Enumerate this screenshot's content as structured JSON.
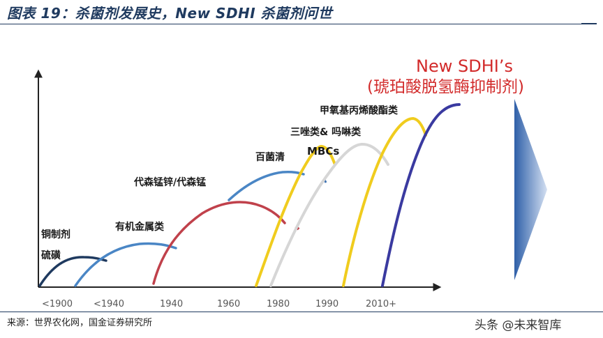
{
  "header": {
    "title": "图表 19：杀菌剂发展史，New SDHI 杀菌剂问世"
  },
  "diagram": {
    "x_ticks": [
      "<1900",
      "<1940",
      "1940",
      "1960",
      "1980",
      "1990",
      "2010+"
    ],
    "stages": [
      {
        "label": "铜制剂",
        "color": "#1f3a5f"
      },
      {
        "label": "硫磺",
        "color": "#1f3a5f"
      },
      {
        "label": "有机金属类",
        "color": "#4a86c5"
      },
      {
        "label": "代森锰锌/代森锰",
        "color": "#4a86c5"
      },
      {
        "label": "百菌清",
        "color": "#c0414b"
      },
      {
        "label": "MBCs",
        "color": "#f0cc1e"
      },
      {
        "label": "三唑类& 吗啉类",
        "color": "#c0c0c0"
      },
      {
        "label": "甲氧基丙烯酸酯类",
        "color": "#f0cc1e"
      }
    ],
    "highlight": {
      "line1": "New SDHI’s",
      "line2": "(琥珀酸脱氢酶抑制剂)",
      "color": "#d22a2a",
      "curve_color": "#3a3aa0"
    }
  },
  "footer": {
    "source": "来源：世界农化网，国金证券研究所",
    "watermark": "头条 @未来智库"
  }
}
